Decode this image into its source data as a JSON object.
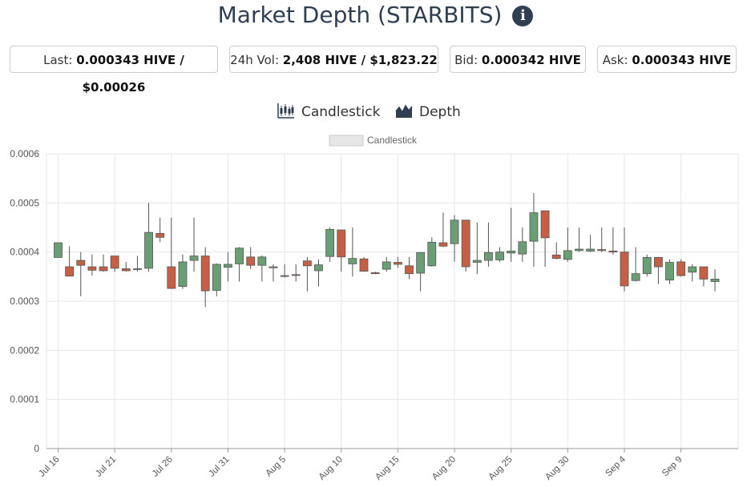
{
  "header": {
    "title": "Market Depth (STARBITS)",
    "info_icon": "info-icon"
  },
  "stats": {
    "last_label": "Last:",
    "last_value": "0.000343 HIVE / $0.00026",
    "vol_label": "24h Vol:",
    "vol_value": "2,408 HIVE / $1,823.22",
    "bid_label": "Bid:",
    "bid_value": "0.000342 HIVE",
    "ask_label": "Ask:",
    "ask_value": "0.000343 HIVE"
  },
  "tabs": {
    "candlestick_label": "Candlestick",
    "candlestick_icon": "candlestick-chart-icon",
    "depth_label": "Depth",
    "depth_icon": "depth-chart-icon"
  },
  "colors": {
    "up": "#6a9e75",
    "down": "#c65f44",
    "accent": "#2f3e51"
  },
  "chart_data": {
    "type": "candlestick",
    "legend": [
      "Candlestick"
    ],
    "legend_position": "top-center",
    "grid": true,
    "ylim": [
      0,
      0.0006
    ],
    "yticks": [
      "0",
      "0.0001",
      "0.0002",
      "0.0003",
      "0.0004",
      "0.0005",
      "0.0006"
    ],
    "xtick_labels": [
      "Jul 16",
      "Jul 21",
      "Jul 26",
      "Jul 31",
      "Aug 5",
      "Aug 10",
      "Aug 15",
      "Aug 20",
      "Aug 25",
      "Aug 30",
      "Sep 4",
      "Sep 9"
    ],
    "x": [
      "Jul 16",
      "Jul 17",
      "Jul 18",
      "Jul 19",
      "Jul 20",
      "Jul 21",
      "Jul 22",
      "Jul 23",
      "Jul 24",
      "Jul 25",
      "Jul 26",
      "Jul 27",
      "Jul 28",
      "Jul 29",
      "Jul 30",
      "Jul 31",
      "Aug 1",
      "Aug 2",
      "Aug 3",
      "Aug 4",
      "Aug 5",
      "Aug 6",
      "Aug 7",
      "Aug 8",
      "Aug 9",
      "Aug 10",
      "Aug 11",
      "Aug 12",
      "Aug 13",
      "Aug 14",
      "Aug 15",
      "Aug 16",
      "Aug 17",
      "Aug 18",
      "Aug 19",
      "Aug 20",
      "Aug 21",
      "Aug 22",
      "Aug 23",
      "Aug 24",
      "Aug 25",
      "Aug 26",
      "Aug 27",
      "Aug 28",
      "Aug 29",
      "Aug 30",
      "Aug 31",
      "Sep 1",
      "Sep 2",
      "Sep 3",
      "Sep 4",
      "Sep 5",
      "Sep 6",
      "Sep 7",
      "Sep 8",
      "Sep 9",
      "Sep 10",
      "Sep 11",
      "Sep 12"
    ],
    "open": [
      0.000389,
      0.00037,
      0.000383,
      0.00037,
      0.00037,
      0.000392,
      0.000366,
      0.000365,
      0.000367,
      0.000438,
      0.00037,
      0.00033,
      0.000383,
      0.000392,
      0.000322,
      0.000369,
      0.000376,
      0.00039,
      0.000373,
      0.000368,
      0.000352,
      0.000354,
      0.000382,
      0.000362,
      0.000391,
      0.000445,
      0.000376,
      0.000386,
      0.000358,
      0.000365,
      0.000379,
      0.000372,
      0.000357,
      0.000372,
      0.000419,
      0.000417,
      0.000465,
      0.000379,
      0.000383,
      0.000384,
      0.000398,
      0.000396,
      0.000422,
      0.000484,
      0.000394,
      0.000385,
      0.000403,
      0.000402,
      0.000405,
      0.000402,
      0.0004,
      0.000342,
      0.000356,
      0.000389,
      0.000343,
      0.00038,
      0.000359,
      0.00037,
      0.00034
    ],
    "close": [
      0.000419,
      0.000351,
      0.000373,
      0.000363,
      0.000362,
      0.000367,
      0.000362,
      0.000366,
      0.00044,
      0.00043,
      0.000326,
      0.00038,
      0.000392,
      0.000321,
      0.000375,
      0.000375,
      0.000408,
      0.000373,
      0.00039,
      0.00037,
      0.000351,
      0.000353,
      0.000372,
      0.000374,
      0.000446,
      0.00039,
      0.000387,
      0.000361,
      0.000356,
      0.00038,
      0.000375,
      0.000356,
      0.000399,
      0.00042,
      0.000412,
      0.000465,
      0.00037,
      0.000383,
      0.000399,
      0.0004,
      0.000402,
      0.000421,
      0.00048,
      0.000429,
      0.000387,
      0.000403,
      0.000406,
      0.000406,
      0.000403,
      0.0004,
      0.000331,
      0.000356,
      0.000389,
      0.00037,
      0.000379,
      0.000352,
      0.00037,
      0.000345,
      0.000345
    ],
    "high": [
      0.000419,
      0.000412,
      0.0004,
      0.000395,
      0.000395,
      0.000392,
      0.00038,
      0.000392,
      0.0005,
      0.00047,
      0.00047,
      0.000395,
      0.00047,
      0.00041,
      0.000377,
      0.0004,
      0.00041,
      0.00041,
      0.000393,
      0.000375,
      0.000375,
      0.000375,
      0.00039,
      0.000385,
      0.00045,
      0.000445,
      0.00045,
      0.00039,
      0.00036,
      0.00039,
      0.00039,
      0.00039,
      0.0004,
      0.00043,
      0.00048,
      0.000475,
      0.000465,
      0.00046,
      0.00046,
      0.00041,
      0.00049,
      0.00045,
      0.00052,
      0.000484,
      0.00042,
      0.00045,
      0.00045,
      0.000435,
      0.00045,
      0.00045,
      0.00045,
      0.00041,
      0.000395,
      0.00039,
      0.000385,
      0.000385,
      0.000375,
      0.00037,
      0.000365
    ],
    "low": [
      0.000389,
      0.000351,
      0.00031,
      0.000352,
      0.00036,
      0.00036,
      0.00036,
      0.00036,
      0.00036,
      0.00042,
      0.000325,
      0.000325,
      0.00036,
      0.000288,
      0.00031,
      0.00034,
      0.00034,
      0.000365,
      0.00034,
      0.00034,
      0.000348,
      0.00034,
      0.00032,
      0.00033,
      0.00038,
      0.00036,
      0.00035,
      0.00036,
      0.000355,
      0.00036,
      0.000368,
      0.000345,
      0.00032,
      0.00037,
      0.00041,
      0.00038,
      0.00036,
      0.000355,
      0.00037,
      0.00038,
      0.00038,
      0.00038,
      0.00037,
      0.00037,
      0.000385,
      0.00038,
      0.0004,
      0.0004,
      0.0004,
      0.000395,
      0.00032,
      0.00034,
      0.00035,
      0.000335,
      0.000335,
      0.00035,
      0.00034,
      0.00033,
      0.00032
    ]
  }
}
